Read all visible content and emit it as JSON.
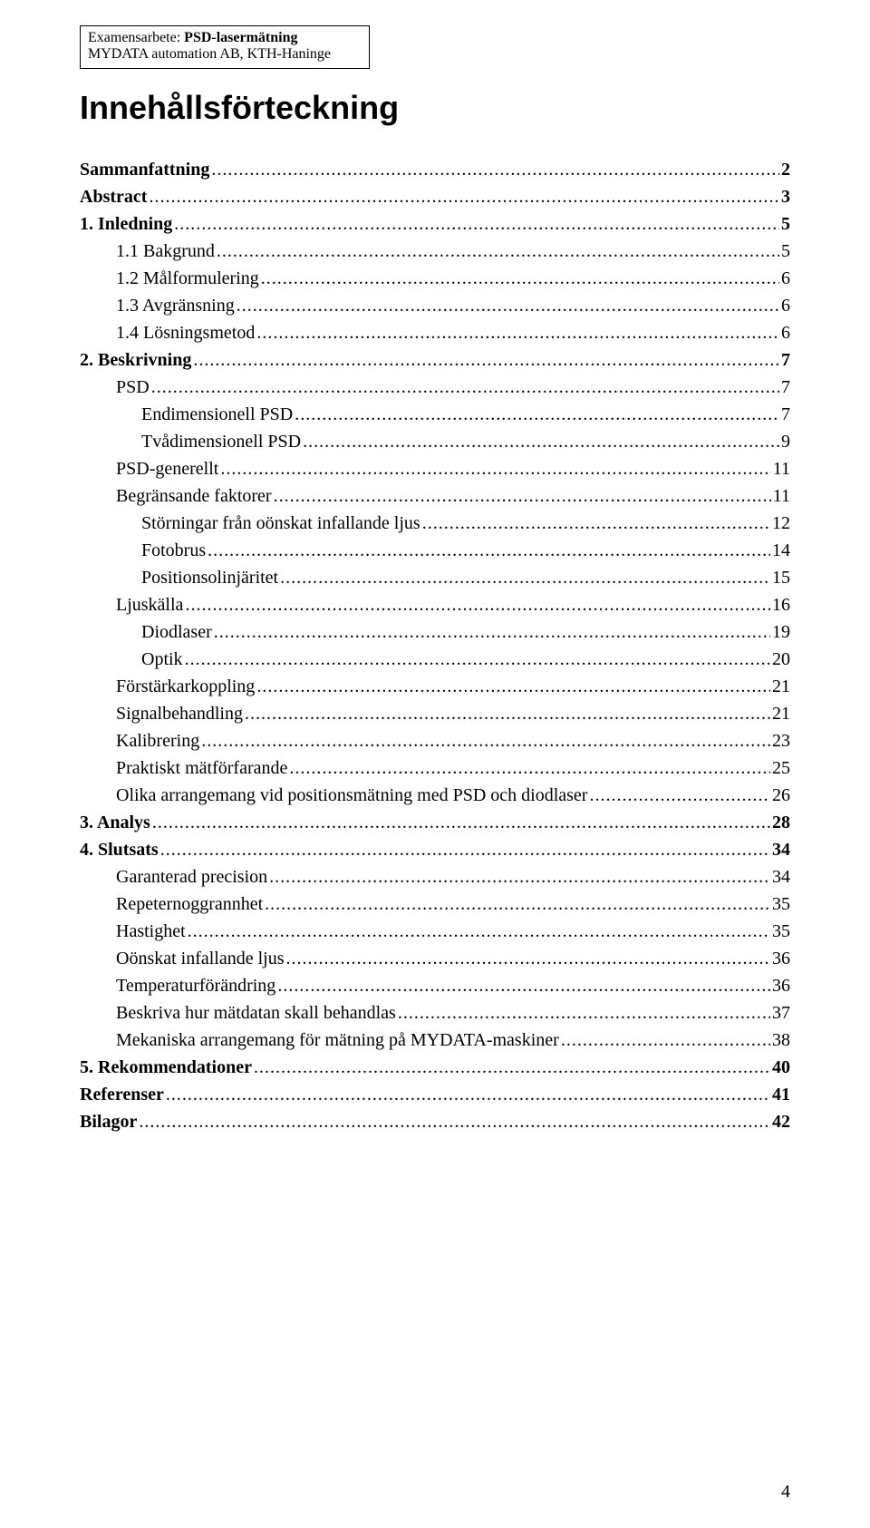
{
  "header": {
    "line1_prefix": "Examensarbete: ",
    "line1_bold": "PSD-lasermätning",
    "line2": "MYDATA automation AB, KTH-Haninge"
  },
  "title": "Innehållsförteckning",
  "toc": [
    {
      "label": "Sammanfattning",
      "page": "2",
      "indent": 0,
      "bold": true
    },
    {
      "label": "Abstract",
      "page": "3",
      "indent": 0,
      "bold": true
    },
    {
      "label": "1.    Inledning",
      "page": "5",
      "indent": 0,
      "bold": true
    },
    {
      "label": "1.1    Bakgrund",
      "page": "5",
      "indent": 1,
      "bold": false
    },
    {
      "label": "1.2    Målformulering",
      "page": "6",
      "indent": 1,
      "bold": false
    },
    {
      "label": "1.3    Avgränsning",
      "page": "6",
      "indent": 1,
      "bold": false
    },
    {
      "label": "1.4    Lösningsmetod",
      "page": "6",
      "indent": 1,
      "bold": false
    },
    {
      "label": "2.    Beskrivning",
      "page": "7",
      "indent": 0,
      "bold": true
    },
    {
      "label": "PSD",
      "page": "7",
      "indent": 1,
      "bold": false
    },
    {
      "label": "Endimensionell PSD",
      "page": "7",
      "indent": 2,
      "bold": false
    },
    {
      "label": "Tvådimensionell PSD",
      "page": "9",
      "indent": 2,
      "bold": false
    },
    {
      "label": "PSD-generellt",
      "page": "11",
      "indent": 1,
      "bold": false
    },
    {
      "label": "Begränsande faktorer",
      "page": "11",
      "indent": 1,
      "bold": false
    },
    {
      "label": "Störningar från oönskat infallande ljus",
      "page": "12",
      "indent": 2,
      "bold": false
    },
    {
      "label": "Fotobrus",
      "page": "14",
      "indent": 2,
      "bold": false
    },
    {
      "label": "Positionsolinjäritet",
      "page": "15",
      "indent": 2,
      "bold": false
    },
    {
      "label": "Ljuskälla",
      "page": "16",
      "indent": 1,
      "bold": false
    },
    {
      "label": "Diodlaser",
      "page": "19",
      "indent": 2,
      "bold": false
    },
    {
      "label": "Optik",
      "page": "20",
      "indent": 2,
      "bold": false
    },
    {
      "label": "Förstärkarkoppling",
      "page": "21",
      "indent": 1,
      "bold": false
    },
    {
      "label": "Signalbehandling",
      "page": "21",
      "indent": 1,
      "bold": false
    },
    {
      "label": "Kalibrering",
      "page": "23",
      "indent": 1,
      "bold": false
    },
    {
      "label": "Praktiskt mätförfarande",
      "page": "25",
      "indent": 1,
      "bold": false
    },
    {
      "label": "Olika arrangemang vid positionsmätning med PSD och diodlaser",
      "page": "26",
      "indent": 1,
      "bold": false
    },
    {
      "label": "3.    Analys",
      "page": "28",
      "indent": 0,
      "bold": true
    },
    {
      "label": "4.    Slutsats",
      "page": "34",
      "indent": 0,
      "bold": true
    },
    {
      "label": "Garanterad precision",
      "page": "34",
      "indent": 1,
      "bold": false
    },
    {
      "label": "Repeternoggrannhet",
      "page": "35",
      "indent": 1,
      "bold": false
    },
    {
      "label": "Hastighet",
      "page": "35",
      "indent": 1,
      "bold": false
    },
    {
      "label": "Oönskat infallande ljus",
      "page": "36",
      "indent": 1,
      "bold": false
    },
    {
      "label": "Temperaturförändring",
      "page": "36",
      "indent": 1,
      "bold": false
    },
    {
      "label": "Beskriva hur mätdatan skall behandlas",
      "page": "37",
      "indent": 1,
      "bold": false
    },
    {
      "label": "Mekaniska arrangemang för mätning på MYDATA-maskiner",
      "page": "38",
      "indent": 1,
      "bold": false
    },
    {
      "label": "5.    Rekommendationer",
      "page": "40",
      "indent": 0,
      "bold": true
    },
    {
      "label": "Referenser",
      "page": "41",
      "indent": 0,
      "bold": true
    },
    {
      "label": "Bilagor",
      "page": "42",
      "indent": 0,
      "bold": true
    }
  ],
  "page_number": "4"
}
